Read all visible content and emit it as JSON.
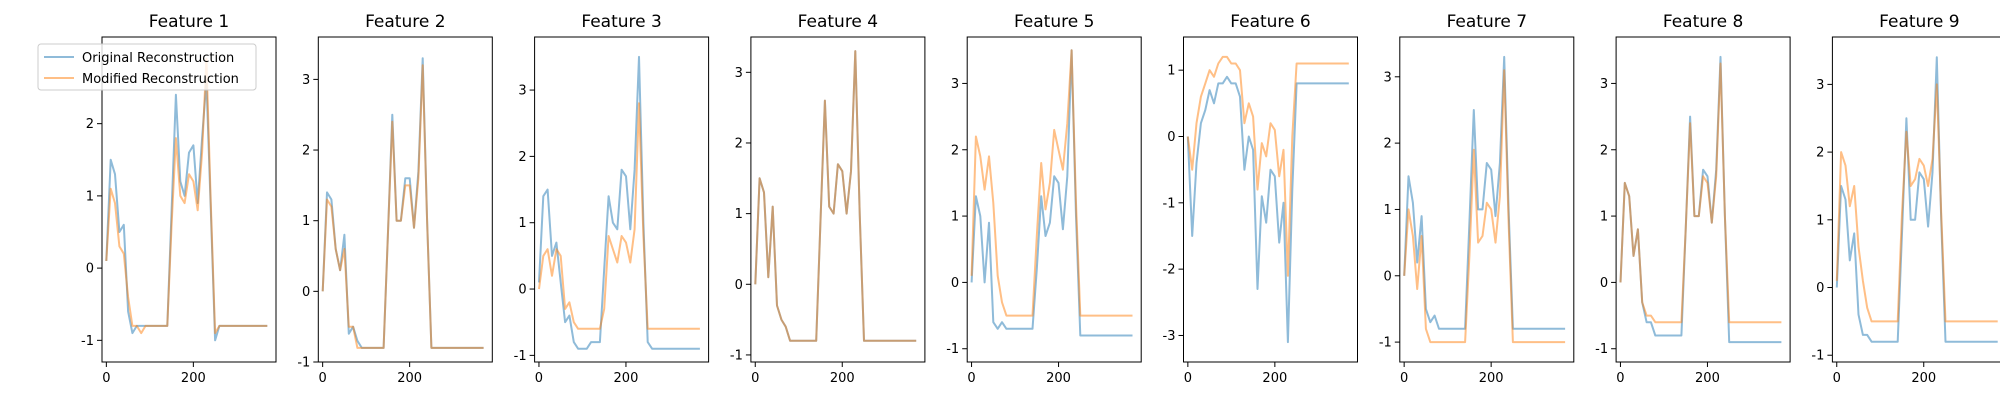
{
  "chart_data": {
    "type": "line",
    "panel_count": 9,
    "x": [
      0,
      10,
      20,
      30,
      40,
      50,
      60,
      70,
      80,
      90,
      100,
      110,
      120,
      130,
      140,
      150,
      160,
      170,
      180,
      190,
      200,
      210,
      220,
      230,
      240,
      250,
      260,
      270,
      280,
      290,
      300,
      310,
      320,
      330,
      340,
      350,
      360,
      370
    ],
    "xticks": [
      0,
      200
    ],
    "xlim": [
      -10,
      390
    ],
    "legend": {
      "placement": "upper-left",
      "entries": [
        "Original Reconstruction",
        "Modified Reconstruction"
      ]
    },
    "colors": {
      "original": "#1f77b4",
      "modified": "#ff7f0e"
    },
    "alpha": 0.5,
    "panels": [
      {
        "title": "Feature 1",
        "ylim": [
          -1.3,
          3.2
        ],
        "yticks": [
          -1,
          0,
          1,
          2
        ],
        "series": [
          {
            "name": "Original Reconstruction",
            "values": [
              0.1,
              1.5,
              1.3,
              0.5,
              0.6,
              -0.6,
              -0.9,
              -0.8,
              -0.8,
              -0.8,
              -0.8,
              -0.8,
              -0.8,
              -0.8,
              -0.8,
              0.8,
              2.4,
              1.2,
              1.0,
              1.6,
              1.7,
              0.9,
              1.8,
              2.6,
              0.8,
              -1.0,
              -0.8,
              -0.8,
              -0.8,
              -0.8,
              -0.8,
              -0.8,
              -0.8,
              -0.8,
              -0.8,
              -0.8,
              -0.8,
              -0.8
            ]
          },
          {
            "name": "Modified Reconstruction",
            "values": [
              0.1,
              1.1,
              0.9,
              0.3,
              0.2,
              -0.4,
              -0.8,
              -0.8,
              -0.9,
              -0.8,
              -0.8,
              -0.8,
              -0.8,
              -0.8,
              -0.8,
              0.6,
              1.8,
              1.0,
              0.9,
              1.3,
              1.2,
              0.8,
              1.6,
              2.9,
              0.9,
              -0.9,
              -0.8,
              -0.8,
              -0.8,
              -0.8,
              -0.8,
              -0.8,
              -0.8,
              -0.8,
              -0.8,
              -0.8,
              -0.8,
              -0.8
            ]
          }
        ]
      },
      {
        "title": "Feature 2",
        "ylim": [
          -1.0,
          3.6
        ],
        "yticks": [
          -1,
          0,
          1,
          2,
          3
        ],
        "series": [
          {
            "name": "Original Reconstruction",
            "values": [
              0.0,
              1.4,
              1.3,
              0.6,
              0.3,
              0.8,
              -0.6,
              -0.5,
              -0.7,
              -0.8,
              -0.8,
              -0.8,
              -0.8,
              -0.8,
              -0.8,
              0.8,
              2.5,
              1.0,
              1.0,
              1.6,
              1.6,
              0.9,
              1.7,
              3.3,
              1.0,
              -0.8,
              -0.8,
              -0.8,
              -0.8,
              -0.8,
              -0.8,
              -0.8,
              -0.8,
              -0.8,
              -0.8,
              -0.8,
              -0.8,
              -0.8
            ]
          },
          {
            "name": "Modified Reconstruction",
            "values": [
              0.0,
              1.3,
              1.2,
              0.6,
              0.3,
              0.6,
              -0.5,
              -0.5,
              -0.8,
              -0.8,
              -0.8,
              -0.8,
              -0.8,
              -0.8,
              -0.8,
              0.8,
              2.4,
              1.0,
              1.0,
              1.5,
              1.5,
              0.9,
              1.6,
              3.2,
              1.0,
              -0.8,
              -0.8,
              -0.8,
              -0.8,
              -0.8,
              -0.8,
              -0.8,
              -0.8,
              -0.8,
              -0.8,
              -0.8,
              -0.8,
              -0.8
            ]
          }
        ]
      },
      {
        "title": "Feature 3",
        "ylim": [
          -1.1,
          3.8
        ],
        "yticks": [
          -1,
          0,
          1,
          2,
          3
        ],
        "series": [
          {
            "name": "Original Reconstruction",
            "values": [
              0.1,
              1.4,
              1.5,
              0.5,
              0.7,
              0.1,
              -0.5,
              -0.4,
              -0.8,
              -0.9,
              -0.9,
              -0.9,
              -0.8,
              -0.8,
              -0.8,
              0.3,
              1.4,
              1.0,
              0.9,
              1.8,
              1.7,
              0.9,
              1.8,
              3.5,
              1.0,
              -0.8,
              -0.9,
              -0.9,
              -0.9,
              -0.9,
              -0.9,
              -0.9,
              -0.9,
              -0.9,
              -0.9,
              -0.9,
              -0.9,
              -0.9
            ]
          },
          {
            "name": "Modified Reconstruction",
            "values": [
              0.0,
              0.5,
              0.6,
              0.2,
              0.6,
              0.5,
              -0.3,
              -0.2,
              -0.5,
              -0.6,
              -0.6,
              -0.6,
              -0.6,
              -0.6,
              -0.6,
              -0.3,
              0.8,
              0.6,
              0.4,
              0.8,
              0.7,
              0.4,
              0.9,
              2.8,
              0.8,
              -0.6,
              -0.6,
              -0.6,
              -0.6,
              -0.6,
              -0.6,
              -0.6,
              -0.6,
              -0.6,
              -0.6,
              -0.6,
              -0.6,
              -0.6
            ]
          }
        ]
      },
      {
        "title": "Feature 4",
        "ylim": [
          -1.1,
          3.5
        ],
        "yticks": [
          -1,
          0,
          1,
          2,
          3
        ],
        "series": [
          {
            "name": "Original Reconstruction",
            "values": [
              0.0,
              1.5,
              1.3,
              0.1,
              1.1,
              -0.3,
              -0.5,
              -0.6,
              -0.8,
              -0.8,
              -0.8,
              -0.8,
              -0.8,
              -0.8,
              -0.8,
              0.9,
              2.6,
              1.1,
              1.0,
              1.7,
              1.6,
              1.0,
              1.6,
              3.3,
              1.0,
              -0.8,
              -0.8,
              -0.8,
              -0.8,
              -0.8,
              -0.8,
              -0.8,
              -0.8,
              -0.8,
              -0.8,
              -0.8,
              -0.8,
              -0.8
            ]
          },
          {
            "name": "Modified Reconstruction",
            "values": [
              0.0,
              1.5,
              1.3,
              0.1,
              1.1,
              -0.3,
              -0.5,
              -0.6,
              -0.8,
              -0.8,
              -0.8,
              -0.8,
              -0.8,
              -0.8,
              -0.8,
              0.9,
              2.6,
              1.1,
              1.0,
              1.7,
              1.6,
              1.0,
              1.6,
              3.3,
              1.0,
              -0.8,
              -0.8,
              -0.8,
              -0.8,
              -0.8,
              -0.8,
              -0.8,
              -0.8,
              -0.8,
              -0.8,
              -0.8,
              -0.8,
              -0.8
            ]
          }
        ]
      },
      {
        "title": "Feature 5",
        "ylim": [
          -1.2,
          3.7
        ],
        "yticks": [
          -1,
          0,
          1,
          2,
          3
        ],
        "series": [
          {
            "name": "Original Reconstruction",
            "values": [
              0.0,
              1.3,
              1.0,
              0.0,
              0.9,
              -0.6,
              -0.7,
              -0.6,
              -0.7,
              -0.7,
              -0.7,
              -0.7,
              -0.7,
              -0.7,
              -0.7,
              0.2,
              1.3,
              0.7,
              0.9,
              1.6,
              1.5,
              0.8,
              1.6,
              3.5,
              1.0,
              -0.8,
              -0.8,
              -0.8,
              -0.8,
              -0.8,
              -0.8,
              -0.8,
              -0.8,
              -0.8,
              -0.8,
              -0.8,
              -0.8,
              -0.8
            ]
          },
          {
            "name": "Modified Reconstruction",
            "values": [
              0.1,
              2.2,
              1.9,
              1.4,
              1.9,
              1.2,
              0.1,
              -0.3,
              -0.5,
              -0.5,
              -0.5,
              -0.5,
              -0.5,
              -0.5,
              -0.5,
              0.7,
              1.8,
              1.1,
              1.5,
              2.3,
              2.0,
              1.7,
              2.4,
              3.5,
              1.2,
              -0.5,
              -0.5,
              -0.5,
              -0.5,
              -0.5,
              -0.5,
              -0.5,
              -0.5,
              -0.5,
              -0.5,
              -0.5,
              -0.5,
              -0.5
            ]
          }
        ]
      },
      {
        "title": "Feature 6",
        "ylim": [
          -3.4,
          1.5
        ],
        "yticks": [
          -3,
          -2,
          -1,
          0,
          1
        ],
        "series": [
          {
            "name": "Original Reconstruction",
            "values": [
              0.0,
              -1.5,
              -0.4,
              0.2,
              0.4,
              0.7,
              0.5,
              0.8,
              0.8,
              0.9,
              0.8,
              0.8,
              0.6,
              -0.5,
              0.0,
              -0.2,
              -2.3,
              -0.9,
              -1.3,
              -0.5,
              -0.6,
              -1.6,
              -1.0,
              -3.1,
              -0.8,
              0.8,
              0.8,
              0.8,
              0.8,
              0.8,
              0.8,
              0.8,
              0.8,
              0.8,
              0.8,
              0.8,
              0.8,
              0.8
            ]
          },
          {
            "name": "Modified Reconstruction",
            "values": [
              0.0,
              -0.5,
              0.2,
              0.6,
              0.8,
              1.0,
              0.9,
              1.1,
              1.2,
              1.2,
              1.1,
              1.1,
              1.0,
              0.2,
              0.5,
              0.3,
              -0.8,
              -0.1,
              -0.3,
              0.2,
              0.1,
              -0.6,
              -0.2,
              -2.1,
              0.0,
              1.1,
              1.1,
              1.1,
              1.1,
              1.1,
              1.1,
              1.1,
              1.1,
              1.1,
              1.1,
              1.1,
              1.1,
              1.1
            ]
          }
        ]
      },
      {
        "title": "Feature 7",
        "ylim": [
          -1.3,
          3.6
        ],
        "yticks": [
          -1,
          0,
          1,
          2,
          3
        ],
        "series": [
          {
            "name": "Original Reconstruction",
            "values": [
              0.0,
              1.5,
              1.1,
              0.2,
              0.9,
              -0.5,
              -0.7,
              -0.6,
              -0.8,
              -0.8,
              -0.8,
              -0.8,
              -0.8,
              -0.8,
              -0.8,
              0.8,
              2.5,
              1.0,
              1.0,
              1.7,
              1.6,
              0.9,
              1.7,
              3.3,
              1.0,
              -0.8,
              -0.8,
              -0.8,
              -0.8,
              -0.8,
              -0.8,
              -0.8,
              -0.8,
              -0.8,
              -0.8,
              -0.8,
              -0.8,
              -0.8
            ]
          },
          {
            "name": "Modified Reconstruction",
            "values": [
              0.0,
              1.0,
              0.6,
              -0.2,
              0.6,
              -0.8,
              -1.0,
              -1.0,
              -1.0,
              -1.0,
              -1.0,
              -1.0,
              -1.0,
              -1.0,
              -1.0,
              0.3,
              1.9,
              0.5,
              0.6,
              1.1,
              1.0,
              0.5,
              1.2,
              3.1,
              0.8,
              -1.0,
              -1.0,
              -1.0,
              -1.0,
              -1.0,
              -1.0,
              -1.0,
              -1.0,
              -1.0,
              -1.0,
              -1.0,
              -1.0,
              -1.0
            ]
          }
        ]
      },
      {
        "title": "Feature 8",
        "ylim": [
          -1.2,
          3.7
        ],
        "yticks": [
          -1,
          0,
          1,
          2,
          3
        ],
        "series": [
          {
            "name": "Original Reconstruction",
            "values": [
              0.0,
              1.5,
              1.3,
              0.4,
              0.8,
              -0.3,
              -0.6,
              -0.6,
              -0.8,
              -0.8,
              -0.8,
              -0.8,
              -0.8,
              -0.8,
              -0.8,
              0.8,
              2.5,
              1.0,
              1.0,
              1.7,
              1.6,
              0.9,
              1.7,
              3.4,
              1.0,
              -0.9,
              -0.9,
              -0.9,
              -0.9,
              -0.9,
              -0.9,
              -0.9,
              -0.9,
              -0.9,
              -0.9,
              -0.9,
              -0.9,
              -0.9
            ]
          },
          {
            "name": "Modified Reconstruction",
            "values": [
              0.0,
              1.5,
              1.3,
              0.4,
              0.8,
              -0.3,
              -0.5,
              -0.5,
              -0.6,
              -0.6,
              -0.6,
              -0.6,
              -0.6,
              -0.6,
              -0.6,
              0.8,
              2.4,
              1.0,
              1.0,
              1.6,
              1.5,
              0.9,
              1.6,
              3.3,
              1.0,
              -0.6,
              -0.6,
              -0.6,
              -0.6,
              -0.6,
              -0.6,
              -0.6,
              -0.6,
              -0.6,
              -0.6,
              -0.6,
              -0.6,
              -0.6
            ]
          }
        ]
      },
      {
        "title": "Feature 9",
        "ylim": [
          -1.1,
          3.7
        ],
        "yticks": [
          -1,
          0,
          1,
          2,
          3
        ],
        "series": [
          {
            "name": "Original Reconstruction",
            "values": [
              0.0,
              1.5,
              1.3,
              0.4,
              0.8,
              -0.4,
              -0.7,
              -0.7,
              -0.8,
              -0.8,
              -0.8,
              -0.8,
              -0.8,
              -0.8,
              -0.8,
              0.8,
              2.5,
              1.0,
              1.0,
              1.7,
              1.6,
              0.9,
              1.7,
              3.4,
              1.0,
              -0.8,
              -0.8,
              -0.8,
              -0.8,
              -0.8,
              -0.8,
              -0.8,
              -0.8,
              -0.8,
              -0.8,
              -0.8,
              -0.8,
              -0.8
            ]
          },
          {
            "name": "Modified Reconstruction",
            "values": [
              0.1,
              2.0,
              1.8,
              1.2,
              1.5,
              0.6,
              0.1,
              -0.3,
              -0.5,
              -0.5,
              -0.5,
              -0.5,
              -0.5,
              -0.5,
              -0.5,
              1.1,
              2.3,
              1.5,
              1.6,
              1.9,
              1.8,
              1.5,
              1.9,
              3.0,
              1.1,
              -0.5,
              -0.5,
              -0.5,
              -0.5,
              -0.5,
              -0.5,
              -0.5,
              -0.5,
              -0.5,
              -0.5,
              -0.5,
              -0.5,
              -0.5
            ]
          }
        ]
      }
    ]
  }
}
